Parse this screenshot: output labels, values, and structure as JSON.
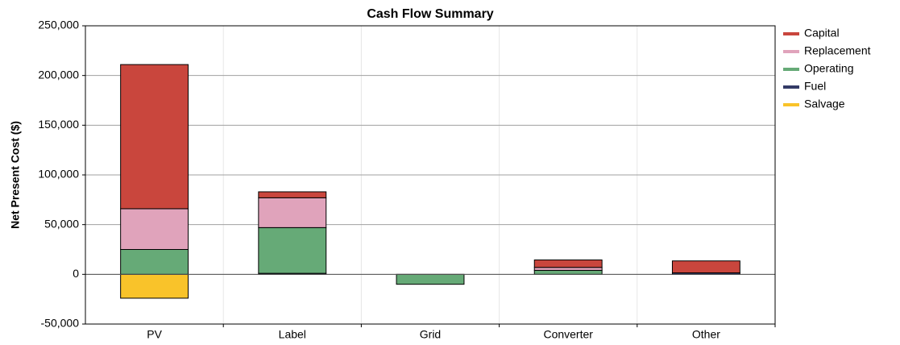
{
  "chart_data": {
    "type": "stacked_bar",
    "title": "Cash Flow Summary",
    "y_label": "Net Present Cost ($)",
    "categories": [
      "PV",
      "Label",
      "Grid",
      "Converter",
      "Other"
    ],
    "series": [
      {
        "name": "Capital",
        "color": "#c9463d",
        "values": [
          145000,
          6000,
          0,
          7500,
          12000
        ]
      },
      {
        "name": "Replacement",
        "color": "#e0a3bb",
        "values": [
          41000,
          30000,
          0,
          3000,
          0
        ]
      },
      {
        "name": "Operating",
        "color": "#66aa77",
        "values": [
          25000,
          46000,
          -10000,
          4000,
          0
        ]
      },
      {
        "name": "Fuel",
        "color": "#333a66",
        "values": [
          0,
          1000,
          0,
          0,
          1500
        ]
      },
      {
        "name": "Salvage",
        "color": "#f9c32a",
        "values": [
          -24000,
          0,
          0,
          0,
          0
        ]
      }
    ],
    "ylim": [
      -50000,
      250000
    ],
    "yticks": [
      {
        "value": -50000,
        "label": "-50,000"
      },
      0,
      {
        "value": 50000,
        "label": "50,000"
      },
      {
        "value": 100000,
        "label": "100,000"
      },
      {
        "value": 150000,
        "label": "150,000"
      },
      {
        "value": 200000,
        "label": "200,000"
      },
      {
        "value": 250000,
        "label": "250,000"
      }
    ],
    "grid": true,
    "legend": "right"
  }
}
